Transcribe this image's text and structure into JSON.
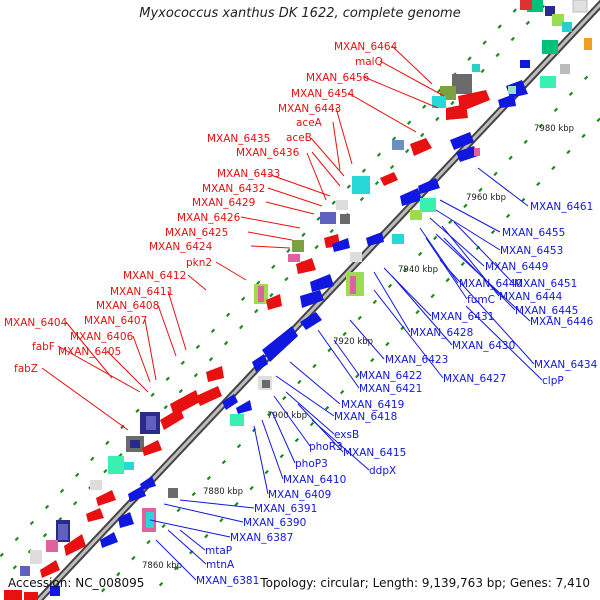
{
  "title": "Myxococcus xanthus DK 1622, complete genome",
  "accession": "Accession: NC_008095",
  "topology": "Topology: circular; Length: 9,139,763 bp; Genes: 7,410",
  "colors": {
    "forward": "#e81010",
    "reverse": "#1018e0",
    "backbone": "#8a8a8a",
    "tick": "#1f8a1f"
  },
  "kbp_markers": [
    "7860 kbp",
    "7880 kbp",
    "7900 kbp",
    "7920 kbp",
    "7940 kbp",
    "7960 kbp",
    "7980 kbp"
  ],
  "top_labels": [
    "MXAN_6464",
    "malQ",
    "MXAN_6456",
    "MXAN_6454",
    "MXAN_6443",
    "aceA",
    "aceB",
    "MXAN_6435",
    "MXAN_6436",
    "MXAN_6433",
    "MXAN_6432",
    "MXAN_6429",
    "MXAN_6426",
    "MXAN_6425",
    "MXAN_6424",
    "pkn2",
    "MXAN_6412",
    "MXAN_6411",
    "MXAN_6408",
    "MXAN_6407",
    "MXAN_6404",
    "MXAN_6406",
    "fabF",
    "MXAN_6405",
    "fabZ"
  ],
  "bottom_labels": [
    "MXAN_6461",
    "MXAN_6455",
    "MXAN_6453",
    "MXAN_6449",
    "MXAN_6451",
    "MXAN_6440",
    "MXAN_6444",
    "fumC",
    "MXAN_6445",
    "MXAN_6446",
    "MXAN_6431",
    "MXAN_6428",
    "MXAN_6430",
    "MXAN_6434",
    "MXAN_6423",
    "MXAN_6427",
    "clpP",
    "MXAN_6422",
    "MXAN_6421",
    "MXAN_6419",
    "MXAN_6418",
    "exsB",
    "phoR3",
    "MXAN_6415",
    "ddpX",
    "phoP3",
    "MXAN_6410",
    "MXAN_6409",
    "MXAN_6391",
    "MXAN_6390",
    "MXAN_6387",
    "mtaP",
    "mtnA",
    "MXAN_6381"
  ]
}
